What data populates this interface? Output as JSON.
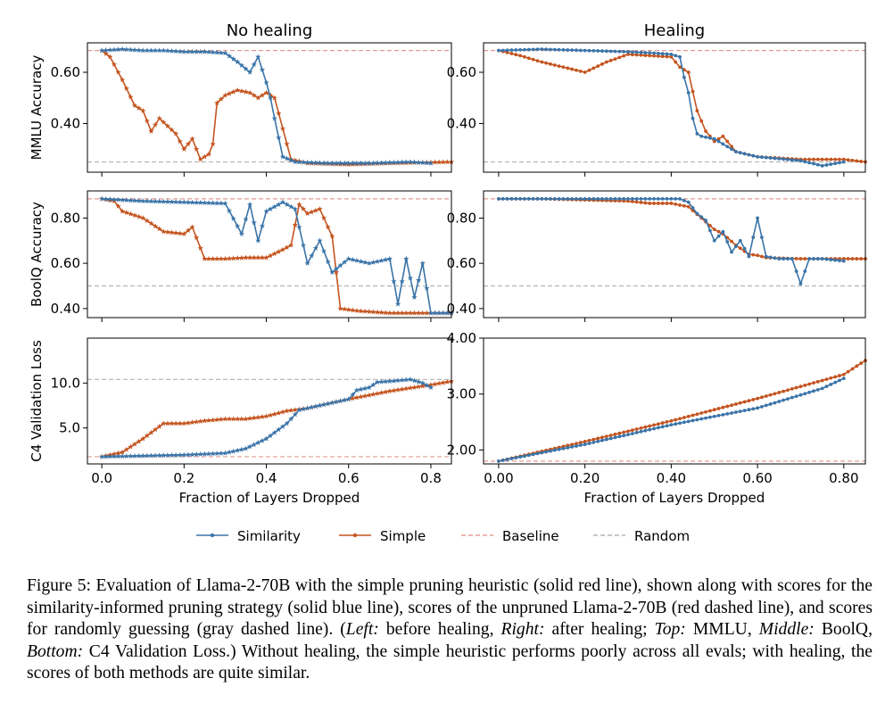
{
  "chart_data": [
    {
      "type": "line",
      "title": "No healing",
      "ylabel": "MMLU Accuracy",
      "xlabel": "",
      "xlim": [
        -0.035,
        0.85
      ],
      "ylim": [
        0.21,
        0.715
      ],
      "xticks": [
        0.0,
        0.2,
        0.4,
        0.6,
        0.8
      ],
      "xtick_labels": [
        "",
        "",
        "",
        "",
        ""
      ],
      "yticks": [
        0.4,
        0.6
      ],
      "ytick_labels": [
        "0.40",
        "0.60"
      ],
      "baseline": 0.685,
      "random": 0.25,
      "series": [
        {
          "name": "Similarity",
          "marker": "star",
          "xmax": 0.8,
          "x": [
            0,
            0.05,
            0.1,
            0.15,
            0.2,
            0.25,
            0.3,
            0.33,
            0.36,
            0.38,
            0.4,
            0.41,
            0.42,
            0.44,
            0.47,
            0.55,
            0.65,
            0.75,
            0.8
          ],
          "y": [
            0.685,
            0.69,
            0.685,
            0.685,
            0.68,
            0.68,
            0.675,
            0.64,
            0.6,
            0.66,
            0.56,
            0.5,
            0.42,
            0.27,
            0.25,
            0.245,
            0.245,
            0.25,
            0.245
          ]
        },
        {
          "name": "Simple",
          "marker": "star",
          "xmax": 0.85,
          "x": [
            0,
            0.02,
            0.05,
            0.08,
            0.1,
            0.12,
            0.14,
            0.16,
            0.18,
            0.2,
            0.22,
            0.24,
            0.26,
            0.27,
            0.28,
            0.3,
            0.33,
            0.36,
            0.38,
            0.4,
            0.42,
            0.44,
            0.46,
            0.5,
            0.6,
            0.7,
            0.85
          ],
          "y": [
            0.685,
            0.66,
            0.57,
            0.47,
            0.45,
            0.37,
            0.42,
            0.39,
            0.36,
            0.3,
            0.34,
            0.26,
            0.28,
            0.32,
            0.48,
            0.51,
            0.53,
            0.52,
            0.5,
            0.52,
            0.5,
            0.38,
            0.26,
            0.245,
            0.24,
            0.245,
            0.25
          ]
        }
      ]
    },
    {
      "type": "line",
      "title": "Healing",
      "ylabel": "",
      "xlabel": "",
      "xlim": [
        -0.035,
        0.85
      ],
      "ylim": [
        0.21,
        0.715
      ],
      "xticks": [
        0.0,
        0.2,
        0.4,
        0.6,
        0.8
      ],
      "xtick_labels": [
        "",
        "",
        "",
        "",
        ""
      ],
      "yticks": [
        0.4,
        0.6
      ],
      "ytick_labels": [
        "0.40",
        "0.60"
      ],
      "baseline": 0.685,
      "random": 0.25,
      "series": [
        {
          "name": "Similarity",
          "marker": "dot",
          "xmax": 0.8,
          "x": [
            0,
            0.1,
            0.2,
            0.3,
            0.36,
            0.4,
            0.42,
            0.43,
            0.44,
            0.45,
            0.46,
            0.47,
            0.5,
            0.55,
            0.6,
            0.7,
            0.75,
            0.8
          ],
          "y": [
            0.685,
            0.69,
            0.685,
            0.68,
            0.675,
            0.67,
            0.66,
            0.58,
            0.52,
            0.42,
            0.36,
            0.35,
            0.34,
            0.29,
            0.27,
            0.255,
            0.235,
            0.25
          ]
        },
        {
          "name": "Simple",
          "marker": "dot",
          "xmax": 0.85,
          "x": [
            0,
            0.05,
            0.1,
            0.15,
            0.2,
            0.25,
            0.3,
            0.35,
            0.4,
            0.42,
            0.44,
            0.46,
            0.48,
            0.5,
            0.52,
            0.55,
            0.6,
            0.7,
            0.8,
            0.85
          ],
          "y": [
            0.685,
            0.665,
            0.64,
            0.62,
            0.6,
            0.64,
            0.67,
            0.665,
            0.66,
            0.62,
            0.6,
            0.45,
            0.37,
            0.33,
            0.35,
            0.29,
            0.27,
            0.26,
            0.26,
            0.25
          ]
        }
      ]
    },
    {
      "type": "line",
      "title": "",
      "ylabel": "BoolQ Accuracy",
      "xlabel": "",
      "xlim": [
        -0.035,
        0.85
      ],
      "ylim": [
        0.36,
        0.92
      ],
      "xticks": [
        0.0,
        0.2,
        0.4,
        0.6,
        0.8
      ],
      "xtick_labels": [
        "",
        "",
        "",
        "",
        ""
      ],
      "yticks": [
        0.4,
        0.6,
        0.8
      ],
      "ytick_labels": [
        "0.40",
        "0.60",
        "0.80"
      ],
      "baseline": 0.885,
      "random": 0.5,
      "series": [
        {
          "name": "Similarity",
          "marker": "star",
          "xmax": 0.85,
          "x": [
            0,
            0.1,
            0.2,
            0.3,
            0.34,
            0.36,
            0.38,
            0.4,
            0.44,
            0.47,
            0.5,
            0.53,
            0.56,
            0.6,
            0.65,
            0.7,
            0.72,
            0.74,
            0.76,
            0.78,
            0.8,
            0.85
          ],
          "y": [
            0.885,
            0.875,
            0.87,
            0.865,
            0.73,
            0.86,
            0.7,
            0.83,
            0.87,
            0.84,
            0.6,
            0.7,
            0.56,
            0.62,
            0.6,
            0.62,
            0.42,
            0.62,
            0.45,
            0.6,
            0.38,
            0.38
          ]
        },
        {
          "name": "Simple",
          "marker": "star",
          "xmax": 0.85,
          "x": [
            0,
            0.03,
            0.05,
            0.1,
            0.15,
            0.2,
            0.22,
            0.25,
            0.3,
            0.35,
            0.4,
            0.44,
            0.46,
            0.48,
            0.5,
            0.53,
            0.56,
            0.58,
            0.62,
            0.7,
            0.85
          ],
          "y": [
            0.885,
            0.875,
            0.83,
            0.8,
            0.74,
            0.73,
            0.76,
            0.62,
            0.62,
            0.625,
            0.625,
            0.66,
            0.68,
            0.86,
            0.82,
            0.84,
            0.72,
            0.4,
            0.39,
            0.38,
            0.38
          ]
        }
      ]
    },
    {
      "type": "line",
      "title": "",
      "ylabel": "",
      "xlabel": "",
      "xlim": [
        -0.035,
        0.85
      ],
      "ylim": [
        0.36,
        0.92
      ],
      "xticks": [
        0.0,
        0.2,
        0.4,
        0.6,
        0.8
      ],
      "xtick_labels": [
        "",
        "",
        "",
        "",
        ""
      ],
      "yticks": [
        0.4,
        0.6,
        0.8
      ],
      "ytick_labels": [
        "0.40",
        "0.60",
        "0.80"
      ],
      "baseline": 0.885,
      "random": 0.5,
      "series": [
        {
          "name": "Similarity",
          "marker": "dot",
          "xmax": 0.8,
          "x": [
            0,
            0.2,
            0.4,
            0.42,
            0.44,
            0.46,
            0.48,
            0.5,
            0.52,
            0.54,
            0.56,
            0.58,
            0.6,
            0.62,
            0.65,
            0.68,
            0.7,
            0.72,
            0.75,
            0.8
          ],
          "y": [
            0.885,
            0.885,
            0.885,
            0.885,
            0.87,
            0.82,
            0.79,
            0.7,
            0.74,
            0.65,
            0.7,
            0.63,
            0.8,
            0.63,
            0.62,
            0.62,
            0.51,
            0.62,
            0.62,
            0.61
          ]
        },
        {
          "name": "Simple",
          "marker": "dot",
          "xmax": 0.85,
          "x": [
            0,
            0.1,
            0.2,
            0.3,
            0.35,
            0.4,
            0.44,
            0.47,
            0.5,
            0.52,
            0.55,
            0.58,
            0.6,
            0.62,
            0.7,
            0.85
          ],
          "y": [
            0.885,
            0.885,
            0.88,
            0.875,
            0.865,
            0.865,
            0.85,
            0.8,
            0.75,
            0.73,
            0.68,
            0.64,
            0.635,
            0.625,
            0.62,
            0.62
          ]
        }
      ]
    },
    {
      "type": "line",
      "title": "",
      "ylabel": "C4 Validation Loss",
      "xlabel": "Fraction of Layers Dropped",
      "xlim": [
        -0.035,
        0.85
      ],
      "ylim": [
        1.0,
        15.0
      ],
      "xticks": [
        0.0,
        0.2,
        0.4,
        0.6,
        0.8
      ],
      "xtick_labels": [
        "0.0",
        "0.2",
        "0.4",
        "0.6",
        "0.8"
      ],
      "yticks": [
        5.0,
        10.0
      ],
      "ytick_labels": [
        "5.0",
        "10.0"
      ],
      "baseline": 1.8,
      "random": 10.4,
      "series": [
        {
          "name": "Similarity",
          "marker": "star",
          "xmax": 0.8,
          "x": [
            0,
            0.1,
            0.2,
            0.3,
            0.35,
            0.4,
            0.45,
            0.48,
            0.5,
            0.55,
            0.6,
            0.62,
            0.65,
            0.67,
            0.7,
            0.75,
            0.78,
            0.8
          ],
          "y": [
            1.8,
            1.9,
            2.0,
            2.2,
            2.7,
            3.8,
            5.5,
            7.0,
            7.2,
            7.7,
            8.2,
            9.2,
            9.5,
            10.1,
            10.2,
            10.4,
            10.0,
            9.5
          ]
        },
        {
          "name": "Simple",
          "marker": "star",
          "xmax": 0.85,
          "x": [
            0,
            0.05,
            0.1,
            0.15,
            0.2,
            0.25,
            0.3,
            0.35,
            0.4,
            0.45,
            0.5,
            0.6,
            0.7,
            0.8,
            0.85
          ],
          "y": [
            1.8,
            2.3,
            3.8,
            5.5,
            5.5,
            5.8,
            6.0,
            6.0,
            6.3,
            6.9,
            7.2,
            8.2,
            9.1,
            9.8,
            10.2
          ]
        }
      ]
    },
    {
      "type": "line",
      "title": "",
      "ylabel": "",
      "xlabel": "Fraction of Layers Dropped",
      "xlim": [
        -0.035,
        0.85
      ],
      "ylim": [
        1.75,
        4.0
      ],
      "xticks": [
        0.0,
        0.2,
        0.4,
        0.6,
        0.8
      ],
      "xtick_labels": [
        "0.00",
        "0.20",
        "0.40",
        "0.60",
        "0.80"
      ],
      "yticks": [
        2.0,
        3.0,
        4.0
      ],
      "ytick_labels": [
        "2.00",
        "3.00",
        "4.00"
      ],
      "baseline": 1.8,
      "random": null,
      "series": [
        {
          "name": "Similarity",
          "marker": "dot",
          "xmax": 0.8,
          "x": [
            0,
            0.2,
            0.4,
            0.6,
            0.75,
            0.8
          ],
          "y": [
            1.8,
            2.1,
            2.45,
            2.75,
            3.1,
            3.28
          ]
        },
        {
          "name": "Simple",
          "marker": "dot",
          "xmax": 0.85,
          "x": [
            0,
            0.2,
            0.4,
            0.6,
            0.8,
            0.85
          ],
          "y": [
            1.8,
            2.15,
            2.52,
            2.92,
            3.35,
            3.6
          ]
        }
      ]
    }
  ],
  "legend": {
    "items": [
      {
        "label": "Similarity",
        "style": "solid-dot",
        "color": "#3a74a8"
      },
      {
        "label": "Simple",
        "style": "solid-dot",
        "color": "#c4541f"
      },
      {
        "label": "Baseline",
        "style": "dashed",
        "color": "#e39a92"
      },
      {
        "label": "Random",
        "style": "dashed",
        "color": "#b4b4b4"
      }
    ]
  },
  "colors": {
    "similarity": "#3a74a8",
    "simple": "#c4541f",
    "baseline": "#e39a92",
    "random": "#b4b4b4"
  },
  "caption": {
    "p1": "Figure 5: Evaluation of Llama-2-70B with the simple pruning heuristic (solid red line), shown along with scores for the similarity-informed pruning strategy (solid blue line), scores of the unpruned Llama-2-70B (red dashed line), and scores for randomly guessing (gray dashed line). (",
    "left_label": "Left:",
    "p2": " before healing, ",
    "right_label": "Right:",
    "p3": " after healing; ",
    "top_label": "Top:",
    "p4": " MMLU, ",
    "middle_label": "Middle:",
    "p5": " BoolQ, ",
    "bottom_label": "Bottom:",
    "p6": " C4 Validation Loss.) Without healing, the simple heuristic performs poorly across all evals; with healing, the scores of both methods are quite similar."
  }
}
